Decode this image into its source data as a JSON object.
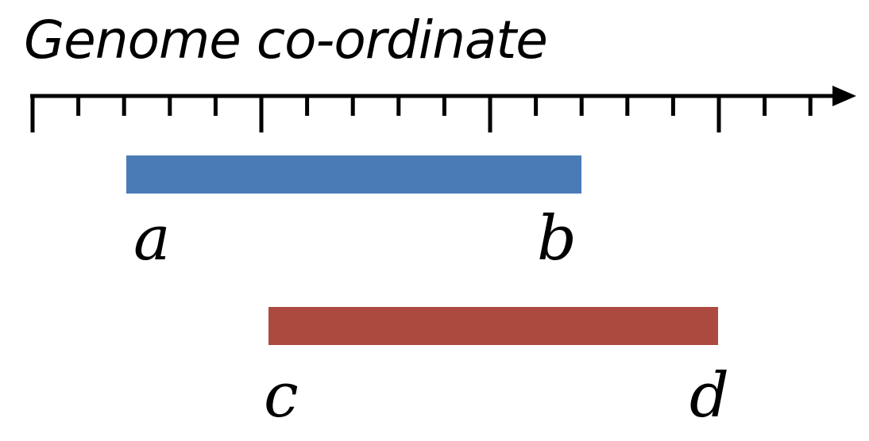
{
  "diagram": {
    "title": "Genome co-ordinate",
    "axis": {
      "tick_count": 18,
      "major_tick_indices": [
        0,
        5,
        10,
        15
      ],
      "arrow_direction": "right",
      "color": "#000000"
    },
    "intervals": [
      {
        "start_label": "a",
        "end_label": "b",
        "color": "#4a7bb7"
      },
      {
        "start_label": "c",
        "end_label": "d",
        "color": "#ad4a40"
      }
    ]
  }
}
